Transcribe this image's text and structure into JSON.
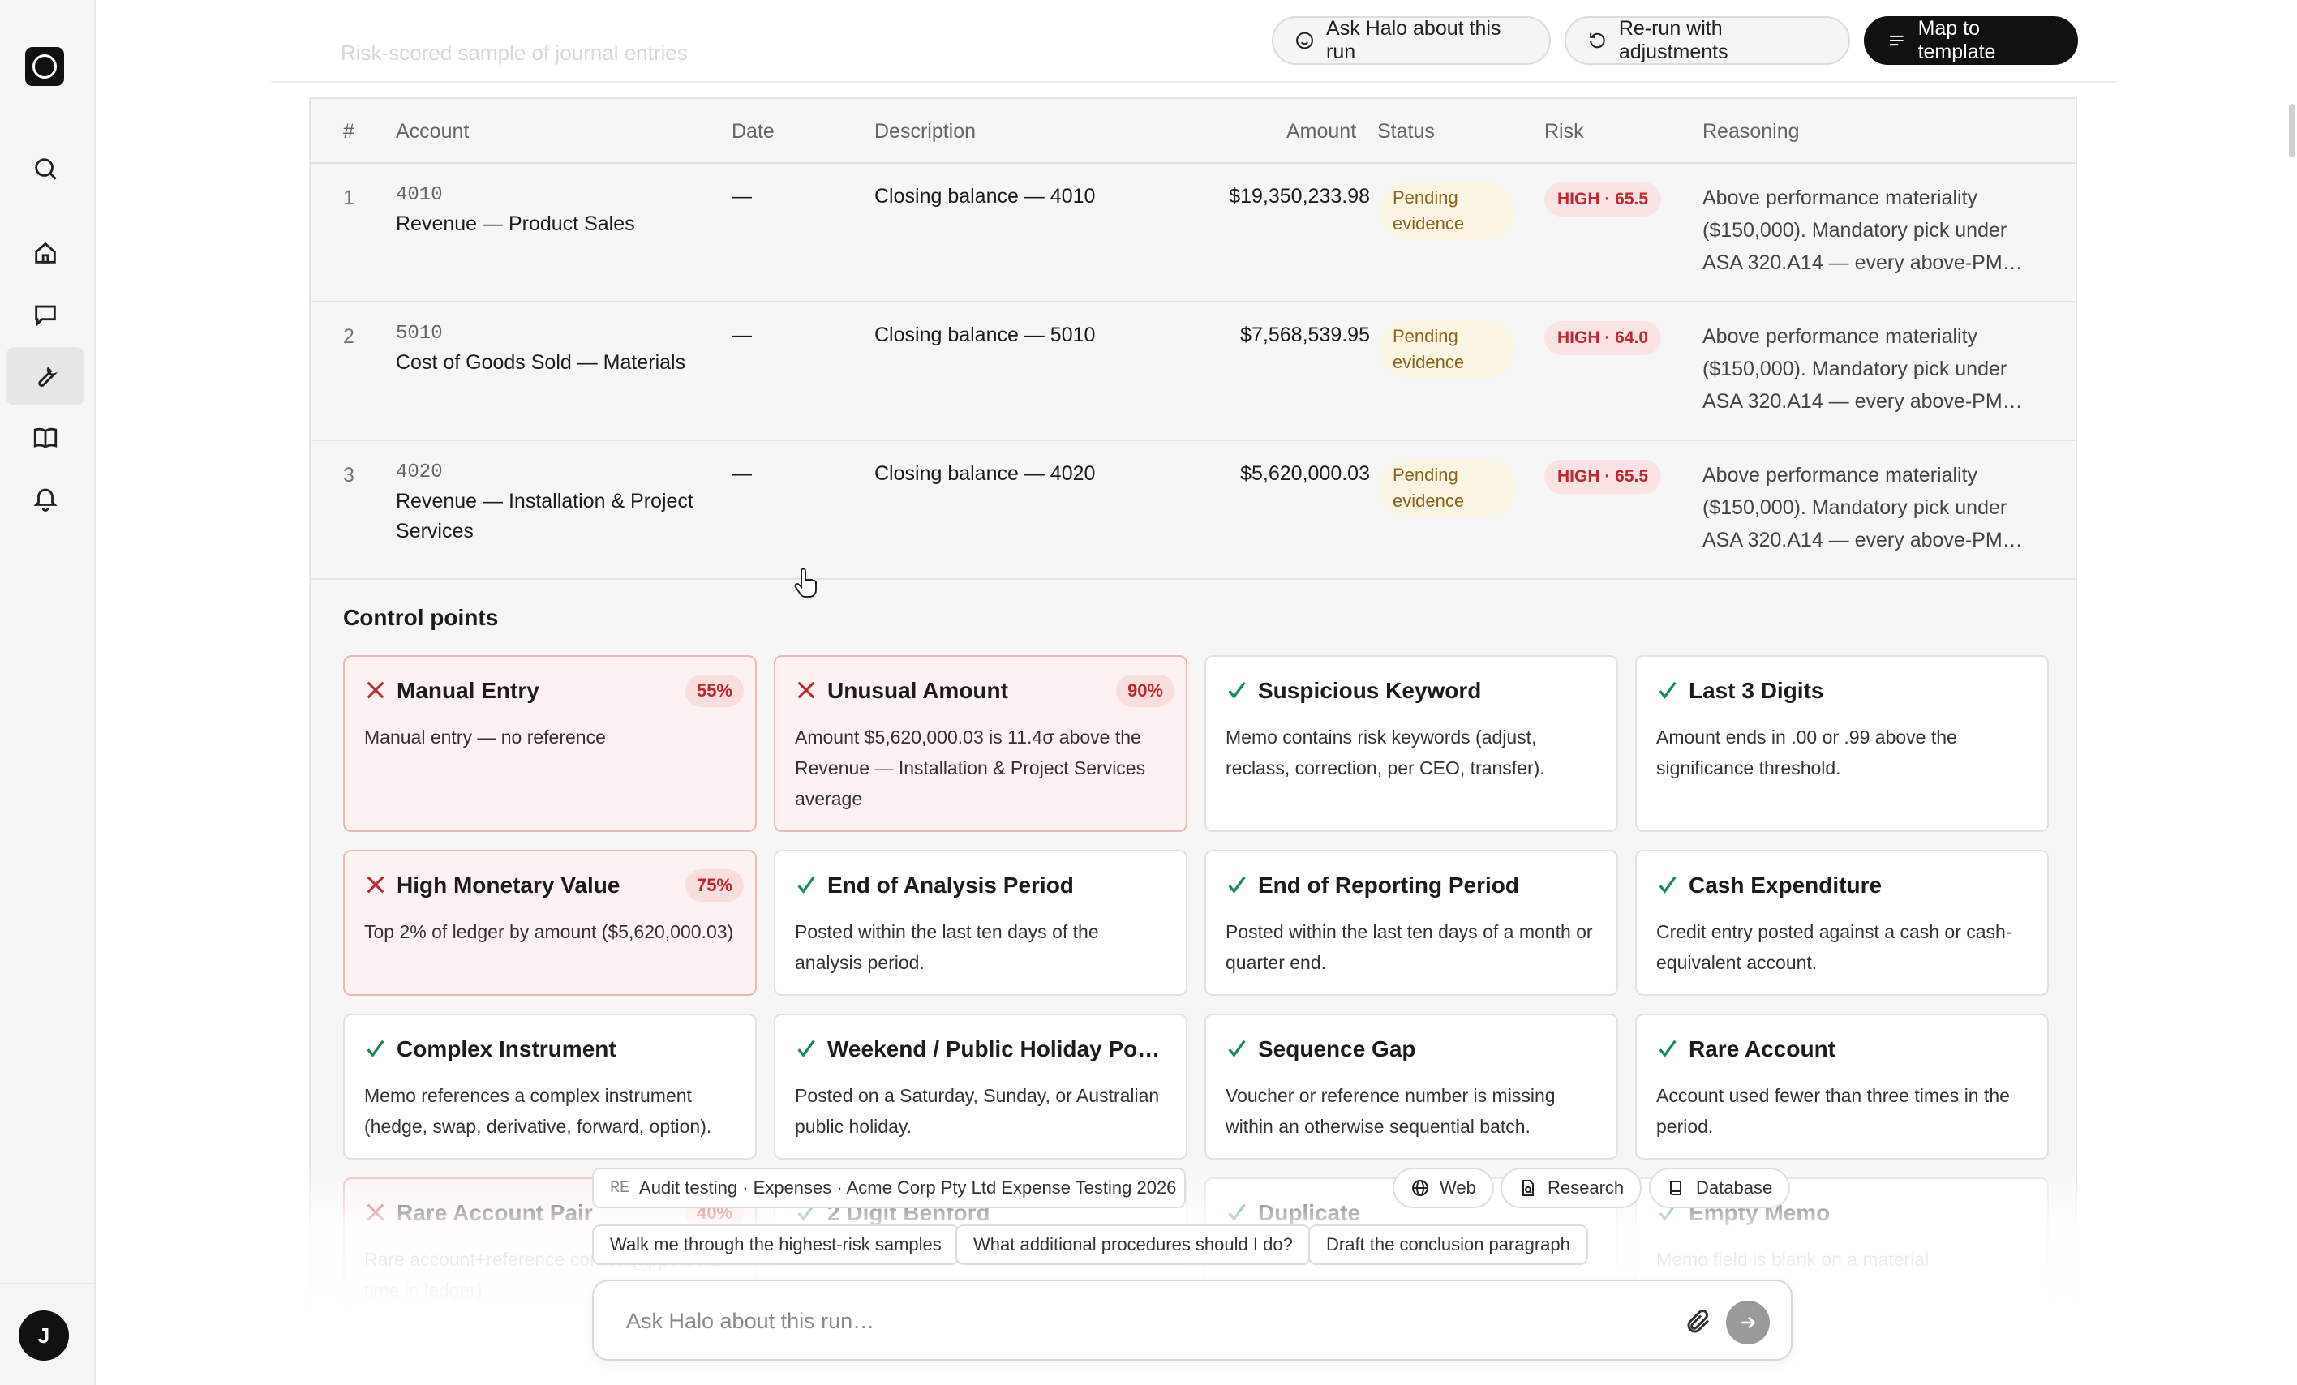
{
  "header": {
    "ghost_text": "Risk-scored sample of journal entries",
    "ask_button": "Ask Halo about this run",
    "rerun_button": "Re-run with adjustments",
    "map_button": "Map to template"
  },
  "table": {
    "headers": [
      "#",
      "Account",
      "Date",
      "Description",
      "Amount",
      "Status",
      "Risk",
      "Reasoning"
    ],
    "rows": [
      {
        "num": "1",
        "code": "4010",
        "name": "Revenue — Product Sales",
        "date": "—",
        "description": "Closing balance — 4010",
        "amount": "$19,350,233.98",
        "status_line1": "Pending",
        "status_line2": "evidence",
        "risk": "HIGH · 65.5",
        "reason_line1": "Above performance materiality",
        "reason_line2": "($150,000). Mandatory pick under",
        "reason_line3": "ASA 320.A14 — every above-PM…"
      },
      {
        "num": "2",
        "code": "5010",
        "name": "Cost of Goods Sold — Materials",
        "date": "—",
        "description": "Closing balance — 5010",
        "amount": "$7,568,539.95",
        "status_line1": "Pending",
        "status_line2": "evidence",
        "risk": "HIGH · 64.0",
        "reason_line1": "Above performance materiality",
        "reason_line2": "($150,000). Mandatory pick under",
        "reason_line3": "ASA 320.A14 — every above-PM…"
      },
      {
        "num": "3",
        "code": "4020",
        "name_line1": "Revenue — Installation & Project",
        "name_line2": "Services",
        "date": "—",
        "description": "Closing balance — 4020",
        "amount": "$5,620,000.03",
        "status_line1": "Pending",
        "status_line2": "evidence",
        "risk": "HIGH · 65.5",
        "reason_line1": "Above performance materiality",
        "reason_line2": "($150,000). Mandatory pick under",
        "reason_line3": "ASA 320.A14 — every above-PM…"
      }
    ]
  },
  "control_points": {
    "title": "Control points",
    "cards": [
      {
        "title": "Manual Entry",
        "pct": "55%",
        "desc": "Manual entry — no reference"
      },
      {
        "title": "Unusual Amount",
        "pct": "90%",
        "desc": "Amount $5,620,000.03 is 11.4σ above the Revenue — Installation & Project Services average"
      },
      {
        "title": "Suspicious Keyword",
        "desc": "Memo contains risk keywords (adjust, reclass, correction, per CEO, transfer)."
      },
      {
        "title": "Last 3 Digits",
        "desc": "Amount ends in .00 or .99 above the significance threshold."
      },
      {
        "title": "High Monetary Value",
        "pct": "75%",
        "desc": "Top 2% of ledger by amount ($5,620,000.03)"
      },
      {
        "title": "End of Analysis Period",
        "desc": "Posted within the last ten days of the analysis period."
      },
      {
        "title": "End of Reporting Period",
        "desc": "Posted within the last ten days of a month or quarter end."
      },
      {
        "title": "Cash Expenditure",
        "desc": "Credit entry posted against a cash or cash-equivalent account."
      },
      {
        "title": "Complex Instrument",
        "desc": "Memo references a complex instrument (hedge, swap, derivative, forward, option)."
      },
      {
        "title": "Weekend / Public Holiday Pos…",
        "desc": "Posted on a Saturday, Sunday, or Australian public holiday."
      },
      {
        "title": "Sequence Gap",
        "desc": "Voucher or reference number is missing within an otherwise sequential batch."
      },
      {
        "title": "Rare Account",
        "desc": "Account used fewer than three times in the period."
      },
      {
        "title": "Rare Account Pair",
        "pct": "40%",
        "desc": "Rare account+reference combo (appears 1 time in ledger)"
      },
      {
        "title": "2 Digit Benford",
        "desc": ""
      },
      {
        "title": "Duplicate",
        "desc": ""
      },
      {
        "title": "Empty Memo",
        "desc": "Memo field is blank on a material"
      }
    ]
  },
  "chat": {
    "context_tag": "RE",
    "context_label": "Audit testing · Expenses · Acme Corp Pty Ltd Expense Testing 2026",
    "source_web": "Web",
    "source_research": "Research",
    "source_database": "Database",
    "suggestions": [
      "Walk me through the highest-risk samples",
      "What additional procedures should I do?",
      "Draft the conclusion paragraph"
    ],
    "placeholder": "Ask Halo about this run…"
  },
  "user": {
    "initial": "J"
  },
  "colors": {
    "fail_red": "#c0282d",
    "pass_green": "#1a8a5a",
    "pending_bg": "#fbf5e3"
  }
}
